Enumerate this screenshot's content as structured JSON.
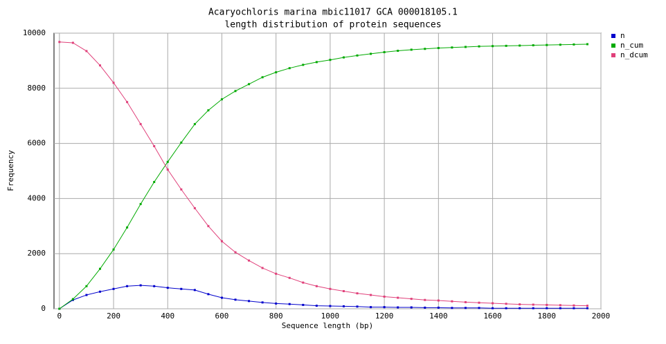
{
  "chart_data": {
    "type": "line",
    "title": "Acaryochloris marina mbic11017 GCA 000018105.1",
    "subtitle": "length distribution of protein sequences",
    "x_label": "Sequence length (bp)",
    "y_label": "Frequency",
    "x": [
      0,
      50,
      100,
      150,
      200,
      250,
      300,
      350,
      400,
      450,
      500,
      550,
      600,
      650,
      700,
      750,
      800,
      850,
      900,
      950,
      1000,
      1050,
      1100,
      1150,
      1200,
      1250,
      1300,
      1350,
      1400,
      1450,
      1500,
      1550,
      1600,
      1650,
      1700,
      1750,
      1800,
      1850,
      1900,
      1950
    ],
    "series": [
      {
        "name": "n",
        "color": "#0000cc",
        "values": [
          0,
          320,
          500,
          620,
          720,
          820,
          850,
          820,
          760,
          720,
          680,
          530,
          400,
          330,
          280,
          230,
          190,
          170,
          140,
          110,
          100,
          90,
          80,
          60,
          60,
          50,
          50,
          40,
          40,
          30,
          30,
          30,
          20,
          20,
          20,
          20,
          20,
          20,
          20,
          20
        ]
      },
      {
        "name": "n_cum",
        "color": "#00aa00",
        "values": [
          0,
          350,
          820,
          1450,
          2150,
          2950,
          3800,
          4600,
          5330,
          6030,
          6700,
          7200,
          7600,
          7900,
          8150,
          8400,
          8580,
          8730,
          8850,
          8950,
          9030,
          9120,
          9190,
          9250,
          9310,
          9360,
          9400,
          9430,
          9460,
          9480,
          9500,
          9520,
          9530,
          9540,
          9550,
          9560,
          9570,
          9580,
          9590,
          9600
        ]
      },
      {
        "name": "n_dcum",
        "color": "#e0407a",
        "values": [
          9680,
          9650,
          9350,
          8830,
          8200,
          7500,
          6700,
          5900,
          5050,
          4330,
          3650,
          3000,
          2450,
          2050,
          1750,
          1480,
          1270,
          1120,
          950,
          820,
          720,
          640,
          560,
          500,
          440,
          400,
          360,
          320,
          300,
          270,
          240,
          220,
          200,
          180,
          160,
          150,
          140,
          130,
          120,
          110
        ]
      }
    ],
    "xlim": [
      -20,
      2000
    ],
    "xticks": [
      0,
      200,
      400,
      600,
      800,
      1000,
      1200,
      1400,
      1600,
      1800,
      2000
    ],
    "ylim": [
      0,
      10000
    ],
    "yticks": [
      0,
      2000,
      4000,
      6000,
      8000,
      10000
    ],
    "grid": true,
    "legend": "right"
  }
}
